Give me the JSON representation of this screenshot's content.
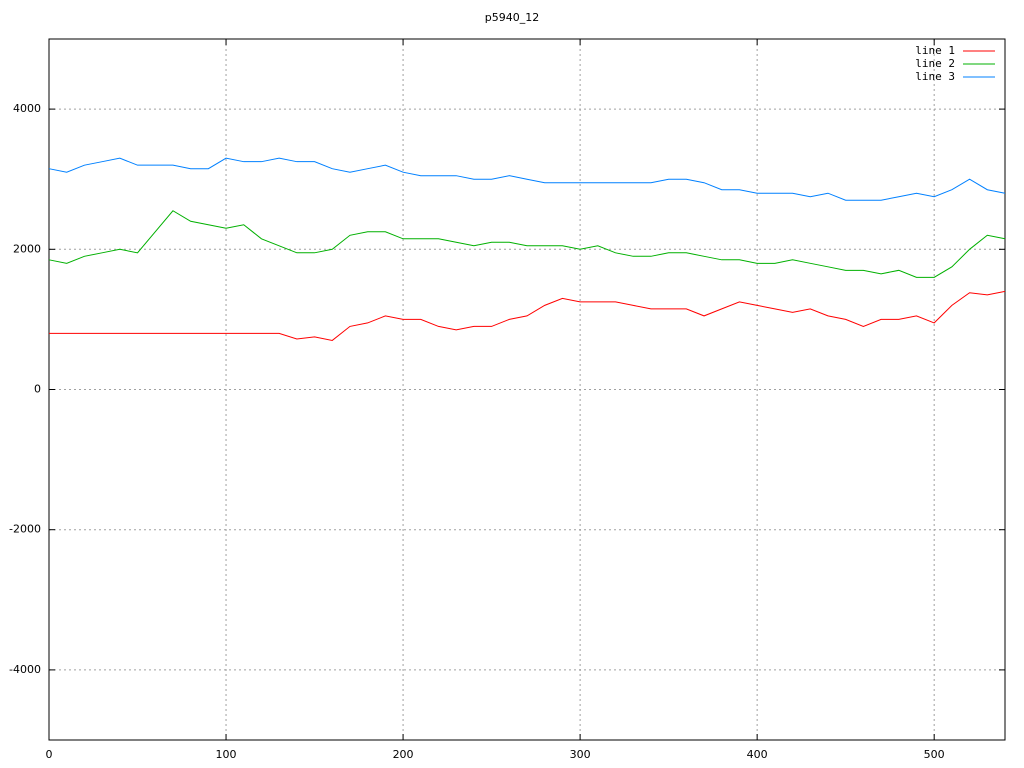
{
  "chart_data": {
    "type": "line",
    "title": "p5940_12",
    "x": [
      0,
      10,
      20,
      30,
      40,
      50,
      60,
      70,
      80,
      90,
      100,
      110,
      120,
      130,
      140,
      150,
      160,
      170,
      180,
      190,
      200,
      210,
      220,
      230,
      240,
      250,
      260,
      270,
      280,
      290,
      300,
      310,
      320,
      330,
      340,
      350,
      360,
      370,
      380,
      390,
      400,
      410,
      420,
      430,
      440,
      450,
      460,
      470,
      480,
      490,
      500,
      510,
      520,
      530,
      540
    ],
    "series": [
      {
        "name": "line 1",
        "color": "#ff0000",
        "values": [
          800,
          800,
          800,
          800,
          800,
          800,
          800,
          800,
          800,
          800,
          800,
          800,
          800,
          800,
          720,
          750,
          700,
          900,
          950,
          1050,
          1000,
          1000,
          900,
          850,
          900,
          900,
          1000,
          1050,
          1200,
          1300,
          1250,
          1250,
          1250,
          1200,
          1150,
          1150,
          1150,
          1050,
          1150,
          1250,
          1200,
          1150,
          1100,
          1150,
          1050,
          1000,
          900,
          1000,
          1000,
          1050,
          950,
          1200,
          1380,
          1350,
          1400
        ]
      },
      {
        "name": "line 2",
        "color": "#00b000",
        "values": [
          1850,
          1800,
          1900,
          1950,
          2000,
          1950,
          2250,
          2550,
          2400,
          2350,
          2300,
          2350,
          2150,
          2050,
          1950,
          1950,
          2000,
          2200,
          2250,
          2250,
          2150,
          2150,
          2150,
          2100,
          2050,
          2100,
          2100,
          2050,
          2050,
          2050,
          2000,
          2050,
          1950,
          1900,
          1900,
          1950,
          1950,
          1900,
          1850,
          1850,
          1800,
          1800,
          1850,
          1800,
          1750,
          1700,
          1700,
          1650,
          1700,
          1600,
          1600,
          1750,
          2000,
          2200,
          2150
        ]
      },
      {
        "name": "line 3",
        "color": "#0080ff",
        "values": [
          3150,
          3100,
          3200,
          3250,
          3300,
          3200,
          3200,
          3200,
          3150,
          3150,
          3300,
          3250,
          3250,
          3300,
          3250,
          3250,
          3150,
          3100,
          3150,
          3200,
          3100,
          3050,
          3050,
          3050,
          3000,
          3000,
          3050,
          3000,
          2950,
          2950,
          2950,
          2950,
          2950,
          2950,
          2950,
          3000,
          3000,
          2950,
          2850,
          2850,
          2800,
          2800,
          2800,
          2750,
          2800,
          2700,
          2700,
          2700,
          2750,
          2800,
          2750,
          2850,
          3000,
          2850,
          2800
        ]
      }
    ],
    "xlim": [
      0,
      540
    ],
    "ylim": [
      -5000,
      5000
    ],
    "xticks": [
      0,
      100,
      200,
      300,
      400,
      500
    ],
    "yticks": [
      -4000,
      -2000,
      0,
      2000,
      4000
    ],
    "grid": true,
    "legend": "top-right"
  }
}
